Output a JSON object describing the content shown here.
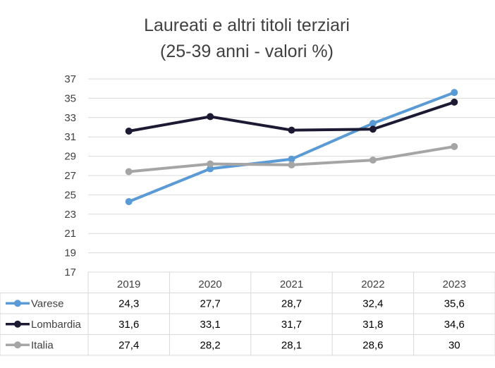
{
  "chart_data": {
    "type": "line",
    "title": "Laureati e altri titoli terziari",
    "subtitle": "(25-39 anni - valori %)",
    "xlabel": "",
    "ylabel": "",
    "categories": [
      "2019",
      "2020",
      "2021",
      "2022",
      "2023"
    ],
    "ylim": [
      17,
      37
    ],
    "yticks": [
      "17",
      "19",
      "21",
      "23",
      "25",
      "27",
      "29",
      "31",
      "33",
      "35",
      "37"
    ],
    "grid": true,
    "legend_position": "data-table",
    "series": [
      {
        "name": "Varese",
        "color": "#5b9bd5",
        "values": [
          24.3,
          27.7,
          28.7,
          32.4,
          35.6
        ],
        "labels": [
          "24,3",
          "27,7",
          "28,7",
          "32,4",
          "35,6"
        ]
      },
      {
        "name": "Lombardia",
        "color": "#1c1a33",
        "values": [
          31.6,
          33.1,
          31.7,
          31.8,
          34.6
        ],
        "labels": [
          "31,6",
          "33,1",
          "31,7",
          "31,8",
          "34,6"
        ]
      },
      {
        "name": "Italia",
        "color": "#a5a5a5",
        "values": [
          27.4,
          28.2,
          28.1,
          28.6,
          30
        ],
        "labels": [
          "27,4",
          "28,2",
          "28,1",
          "28,6",
          "30"
        ]
      }
    ]
  }
}
